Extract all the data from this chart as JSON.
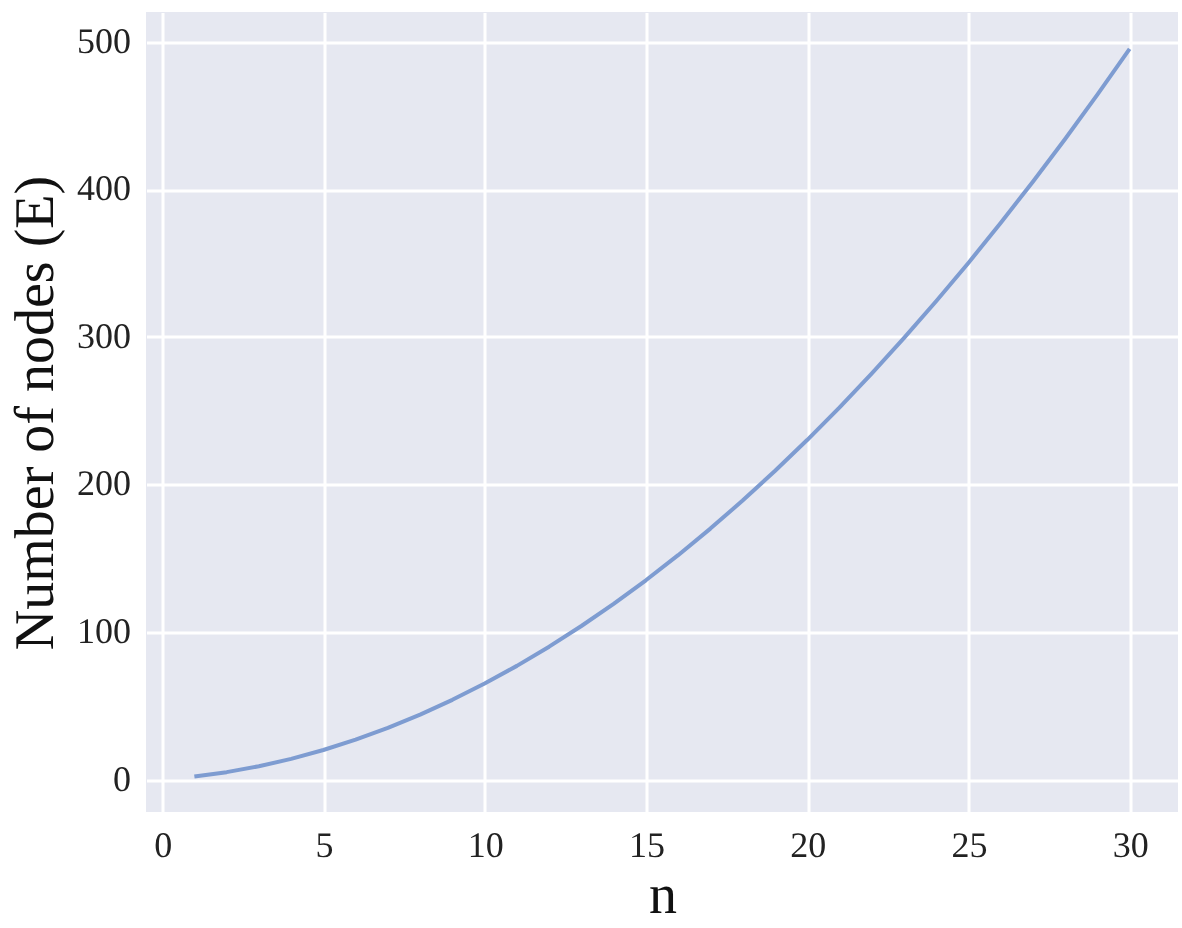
{
  "chart_data": {
    "type": "line",
    "xlabel": "n",
    "ylabel": "Number of nodes (E)",
    "x": [
      1,
      2,
      3,
      4,
      5,
      6,
      7,
      8,
      9,
      10,
      11,
      12,
      13,
      14,
      15,
      16,
      17,
      18,
      19,
      20,
      21,
      22,
      23,
      24,
      25,
      26,
      27,
      28,
      29,
      30
    ],
    "series": [
      {
        "color": "#7e9cd1",
        "values": [
          2,
          5,
          9,
          14,
          20,
          27,
          35,
          44,
          54,
          65,
          77,
          90,
          104,
          119,
          135,
          152,
          170,
          189,
          209,
          230,
          252,
          275,
          299,
          324,
          350,
          377,
          405,
          434,
          464,
          495
        ]
      }
    ],
    "xlim": [
      -0.5,
      31.5
    ],
    "ylim": [
      -22,
      520
    ],
    "xticks": [
      0,
      5,
      10,
      15,
      20,
      25,
      30
    ],
    "yticks": [
      0,
      100,
      200,
      300,
      400,
      500
    ],
    "grid": true,
    "marker": "none",
    "line_style": "solid"
  }
}
